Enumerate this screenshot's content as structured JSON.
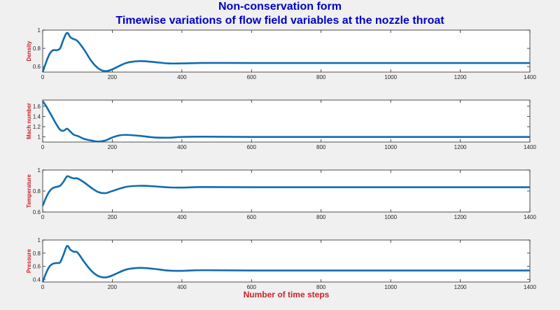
{
  "titles": {
    "line1": "Non-conservation form",
    "line2": "Timewise variations of flow field variables at the nozzle throat"
  },
  "colors": {
    "title": "#0000c8",
    "label": "#d0202a",
    "line": "#0f6cb0"
  },
  "chart_data": [
    {
      "type": "line",
      "title": "Non-conservation form - Timewise variations of flow field variables at the nozzle throat",
      "ylabel": "Density",
      "xlabel": "",
      "xlim": [
        0,
        1400
      ],
      "ylim": [
        0.54,
        1.0
      ],
      "yticks": [
        0.6,
        0.8,
        1
      ],
      "xticks": [
        0,
        200,
        400,
        600,
        800,
        1000,
        1200,
        1400
      ],
      "x": [
        0,
        10,
        20,
        30,
        40,
        50,
        60,
        70,
        80,
        90,
        100,
        120,
        140,
        160,
        180,
        200,
        240,
        280,
        320,
        360,
        400,
        460,
        520,
        600,
        800,
        1000,
        1200,
        1400
      ],
      "values": [
        0.54,
        0.65,
        0.74,
        0.78,
        0.78,
        0.8,
        0.9,
        0.97,
        0.92,
        0.9,
        0.88,
        0.78,
        0.66,
        0.58,
        0.55,
        0.57,
        0.64,
        0.66,
        0.65,
        0.635,
        0.635,
        0.64,
        0.64,
        0.639,
        0.639,
        0.639,
        0.639,
        0.639
      ]
    },
    {
      "type": "line",
      "ylabel": "Mach number",
      "xlim": [
        0,
        1400
      ],
      "ylim": [
        0.9,
        1.72
      ],
      "yticks": [
        1,
        1.2,
        1.4,
        1.6
      ],
      "xticks": [
        0,
        200,
        400,
        600,
        800,
        1000,
        1200,
        1400
      ],
      "x": [
        0,
        10,
        20,
        30,
        40,
        50,
        60,
        70,
        80,
        90,
        100,
        120,
        140,
        160,
        180,
        200,
        220,
        240,
        280,
        320,
        360,
        400,
        460,
        600,
        800,
        1000,
        1200,
        1400
      ],
      "values": [
        1.7,
        1.6,
        1.48,
        1.36,
        1.24,
        1.14,
        1.12,
        1.16,
        1.1,
        1.04,
        1.02,
        0.96,
        0.93,
        0.91,
        0.93,
        0.99,
        1.03,
        1.04,
        1.02,
        0.99,
        0.985,
        1.0,
        1.005,
        1.0,
        1.0,
        1.0,
        1.0,
        1.0
      ]
    },
    {
      "type": "line",
      "ylabel": "Temperature",
      "xlim": [
        0,
        1400
      ],
      "ylim": [
        0.6,
        1.0
      ],
      "yticks": [
        0.6,
        0.8,
        1
      ],
      "xticks": [
        0,
        200,
        400,
        600,
        800,
        1000,
        1200,
        1400
      ],
      "x": [
        0,
        10,
        20,
        30,
        40,
        50,
        60,
        70,
        80,
        90,
        100,
        120,
        140,
        160,
        180,
        200,
        240,
        280,
        320,
        360,
        400,
        460,
        600,
        800,
        1000,
        1200,
        1400
      ],
      "values": [
        0.66,
        0.74,
        0.8,
        0.83,
        0.84,
        0.85,
        0.89,
        0.94,
        0.93,
        0.92,
        0.92,
        0.88,
        0.83,
        0.79,
        0.78,
        0.8,
        0.84,
        0.85,
        0.845,
        0.835,
        0.833,
        0.838,
        0.836,
        0.836,
        0.836,
        0.836,
        0.836
      ]
    },
    {
      "type": "line",
      "ylabel": "Pressure",
      "xlabel": "Number of time steps",
      "xlim": [
        0,
        1400
      ],
      "ylim": [
        0.36,
        1.0
      ],
      "yticks": [
        0.4,
        0.6,
        0.8,
        1
      ],
      "xticks": [
        0,
        200,
        400,
        600,
        800,
        1000,
        1200,
        1400
      ],
      "x": [
        0,
        10,
        20,
        30,
        40,
        50,
        60,
        70,
        80,
        90,
        100,
        120,
        140,
        160,
        180,
        200,
        240,
        280,
        320,
        360,
        400,
        460,
        600,
        800,
        1000,
        1200,
        1400
      ],
      "values": [
        0.36,
        0.5,
        0.6,
        0.64,
        0.65,
        0.66,
        0.78,
        0.91,
        0.85,
        0.82,
        0.81,
        0.66,
        0.53,
        0.45,
        0.43,
        0.46,
        0.55,
        0.575,
        0.56,
        0.535,
        0.53,
        0.54,
        0.535,
        0.535,
        0.535,
        0.535,
        0.535
      ]
    }
  ]
}
